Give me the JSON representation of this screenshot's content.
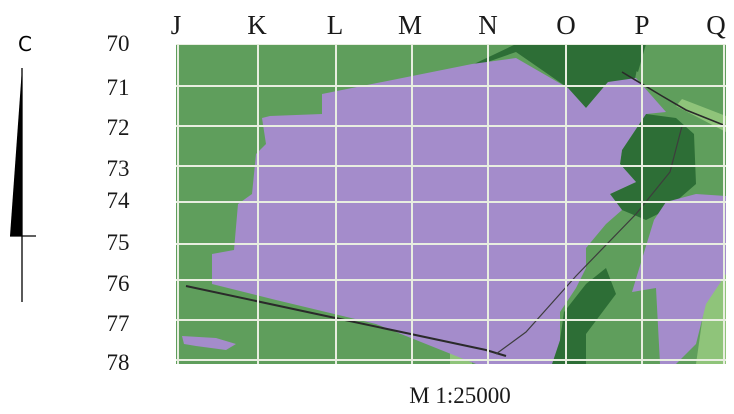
{
  "north_arrow": {
    "letter": "C"
  },
  "grid": {
    "columns": [
      "J",
      "K",
      "L",
      "M",
      "N",
      "O",
      "P",
      "Q"
    ],
    "rows": [
      "70",
      "71",
      "72",
      "73",
      "74",
      "75",
      "76",
      "77",
      "78"
    ]
  },
  "scale": {
    "label": "M 1:25000"
  },
  "colors": {
    "field_green": "#5f9e5c",
    "dark_green": "#2d6e36",
    "light_green": "#8fc47a",
    "purple_area": "#a48ccb",
    "grid_line": "#e8eee0"
  }
}
